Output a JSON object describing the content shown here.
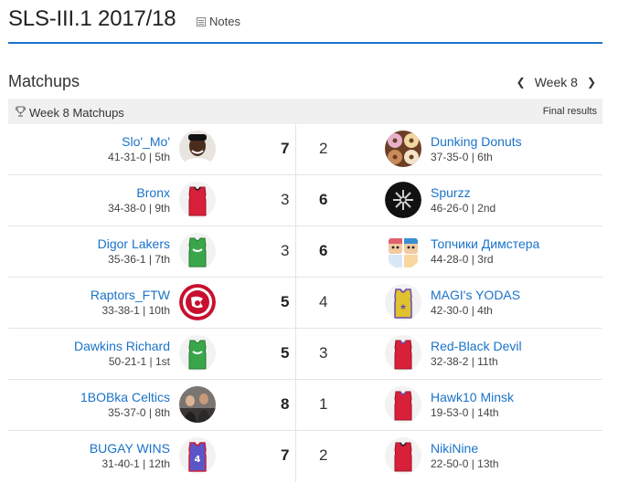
{
  "header": {
    "title": "SLS-III.1 2017/18",
    "notes_label": "Notes"
  },
  "section": {
    "title": "Matchups",
    "week_label": "Week 8"
  },
  "bar": {
    "label": "Week 8 Matchups",
    "status": "Final results"
  },
  "matchups": [
    {
      "left": {
        "name": "Slo'_Mo'",
        "record": "41-31-0 | 5th",
        "score": "7"
      },
      "right": {
        "name": "Dunking Donuts",
        "record": "37-35-0 | 6th",
        "score": "2"
      }
    },
    {
      "left": {
        "name": "Bronx",
        "record": "34-38-0 | 9th",
        "score": "3"
      },
      "right": {
        "name": "Spurzz",
        "record": "46-26-0 | 2nd",
        "score": "6"
      }
    },
    {
      "left": {
        "name": "Digor Lakers",
        "record": "35-36-1 | 7th",
        "score": "3"
      },
      "right": {
        "name": "Топчики Димстера",
        "record": "44-28-0 | 3rd",
        "score": "6"
      }
    },
    {
      "left": {
        "name": "Raptors_FTW",
        "record": "33-38-1 | 10th",
        "score": "5"
      },
      "right": {
        "name": "MAGI's YODAS",
        "record": "42-30-0 | 4th",
        "score": "4"
      }
    },
    {
      "left": {
        "name": "Dawkins Richard",
        "record": "50-21-1 | 1st",
        "score": "5"
      },
      "right": {
        "name": "Red-Black Devil",
        "record": "32-38-2 | 11th",
        "score": "3"
      }
    },
    {
      "left": {
        "name": "1BOBka Celtics",
        "record": "35-37-0 | 8th",
        "score": "8"
      },
      "right": {
        "name": "Hawk10 Minsk",
        "record": "19-53-0 | 14th",
        "score": "1"
      }
    },
    {
      "left": {
        "name": "BUGAY WINS",
        "record": "31-40-1 | 12th",
        "score": "7"
      },
      "right": {
        "name": "NikiNine",
        "record": "22-50-0 | 13th",
        "score": "2"
      }
    }
  ],
  "icons": {
    "rows": [
      {
        "left": "player-photo-avatar",
        "right": "donuts-avatar"
      },
      {
        "left": "red-jersey-avatar",
        "right": "spurs-logo-avatar"
      },
      {
        "left": "green-jersey-avatar",
        "right": "cartoon-characters-avatar"
      },
      {
        "left": "raptors-logo-avatar",
        "right": "yellow-jersey-avatar"
      },
      {
        "left": "green-jersey-avatar",
        "right": "red-jersey-avatar"
      },
      {
        "left": "team-photo-avatar",
        "right": "red-jersey-avatar"
      },
      {
        "left": "number-4-jersey-avatar",
        "right": "red-jersey-avatar"
      }
    ]
  },
  "colors": {
    "accent": "#1a73c9",
    "jersey_red": "#d8203a",
    "jersey_green": "#3aa64a",
    "jersey_yellow": "#e0c12e",
    "jersey_purple": "#6a4bb0"
  }
}
